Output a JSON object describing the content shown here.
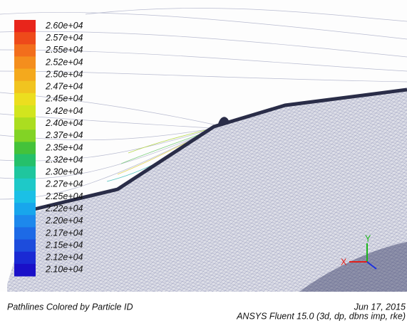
{
  "colorbar": {
    "levels": [
      {
        "label": "2.60e+04",
        "color": "#e8251b"
      },
      {
        "label": "2.57e+04",
        "color": "#ee4a1a"
      },
      {
        "label": "2.55e+04",
        "color": "#f26e1c"
      },
      {
        "label": "2.52e+04",
        "color": "#f48e1d"
      },
      {
        "label": "2.50e+04",
        "color": "#f4a91d"
      },
      {
        "label": "2.47e+04",
        "color": "#f1c41f"
      },
      {
        "label": "2.45e+04",
        "color": "#ecde1f"
      },
      {
        "label": "2.42e+04",
        "color": "#d2e51e"
      },
      {
        "label": "2.40e+04",
        "color": "#abdd20"
      },
      {
        "label": "2.37e+04",
        "color": "#82d325"
      },
      {
        "label": "2.35e+04",
        "color": "#44c23a"
      },
      {
        "label": "2.32e+04",
        "color": "#25c06a"
      },
      {
        "label": "2.30e+04",
        "color": "#1fc69e"
      },
      {
        "label": "2.27e+04",
        "color": "#1ec9c8"
      },
      {
        "label": "2.25e+04",
        "color": "#1bc0e6"
      },
      {
        "label": "2.22e+04",
        "color": "#18a6ec"
      },
      {
        "label": "2.20e+04",
        "color": "#1d88ec"
      },
      {
        "label": "2.17e+04",
        "color": "#1d6ae6"
      },
      {
        "label": "2.15e+04",
        "color": "#1d4cdc"
      },
      {
        "label": "2.12e+04",
        "color": "#1a2ad4"
      },
      {
        "label": "2.10e+04",
        "color": "#1a10c8"
      }
    ]
  },
  "triad": {
    "x_label": "X",
    "y_label": "Y"
  },
  "footer": {
    "caption": "Pathlines Colored by Particle ID",
    "date": "Jun 17, 2015",
    "solver": "ANSYS Fluent 15.0 (3d, dp, dbns imp, rke)"
  }
}
